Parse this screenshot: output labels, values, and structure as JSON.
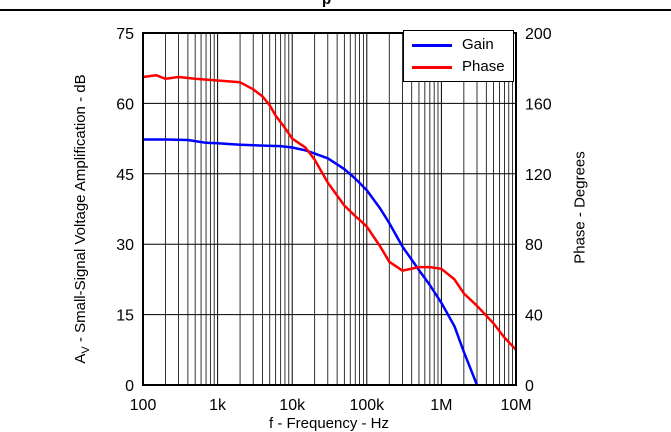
{
  "chart_data": {
    "type": "line",
    "title": "",
    "header_fragment": "p",
    "xlabel": "f - Frequency - Hz",
    "ylabel_left": "AV - Small-Signal Voltage Amplification - dB",
    "ylabel_left_parts": {
      "main": "A",
      "subscript": "V",
      "rest": " - Small-Signal Voltage Amplification - dB"
    },
    "ylabel_right": "Phase - Degrees",
    "x_scale": "log",
    "xlim": [
      100,
      10000000
    ],
    "x_ticks": [
      "100",
      "1k",
      "10k",
      "100k",
      "1M",
      "10M"
    ],
    "ylim_left": [
      0,
      75
    ],
    "y_ticks_left": [
      "0",
      "15",
      "30",
      "45",
      "60",
      "75"
    ],
    "ylim_right": [
      0,
      200
    ],
    "y_ticks_right": [
      "0",
      "40",
      "80",
      "120",
      "160",
      "200"
    ],
    "grid": true,
    "legend_position": "top-right",
    "series": [
      {
        "name": "Gain",
        "axis": "left",
        "color": "#0000ff",
        "points": [
          [
            100,
            52.3
          ],
          [
            200,
            52.3
          ],
          [
            400,
            52.2
          ],
          [
            700,
            51.6
          ],
          [
            1000,
            51.5
          ],
          [
            2000,
            51.2
          ],
          [
            4000,
            51.0
          ],
          [
            7000,
            50.9
          ],
          [
            10000,
            50.6
          ],
          [
            15000,
            50.0
          ],
          [
            20000,
            49.3
          ],
          [
            30000,
            48.3
          ],
          [
            50000,
            46.0
          ],
          [
            70000,
            44.0
          ],
          [
            100000,
            41.5
          ],
          [
            150000,
            37.7
          ],
          [
            200000,
            34.5
          ],
          [
            300000,
            29.5
          ],
          [
            500000,
            24.5
          ],
          [
            700000,
            21.3
          ],
          [
            1000000,
            17.5
          ],
          [
            1500000,
            12.5
          ],
          [
            2000000,
            7.0
          ],
          [
            3000000,
            0
          ]
        ]
      },
      {
        "name": "Phase",
        "axis": "right",
        "color": "#ff0000",
        "points": [
          [
            100,
            175
          ],
          [
            150,
            176
          ],
          [
            200,
            174
          ],
          [
            300,
            175
          ],
          [
            500,
            174
          ],
          [
            1000,
            173
          ],
          [
            2000,
            172
          ],
          [
            3000,
            168
          ],
          [
            4000,
            164
          ],
          [
            5000,
            159
          ],
          [
            6000,
            153
          ],
          [
            8000,
            146
          ],
          [
            10000,
            140
          ],
          [
            15000,
            135
          ],
          [
            20000,
            128
          ],
          [
            30000,
            115
          ],
          [
            50000,
            102
          ],
          [
            70000,
            96
          ],
          [
            100000,
            90
          ],
          [
            150000,
            79
          ],
          [
            200000,
            70
          ],
          [
            300000,
            65
          ],
          [
            500000,
            67
          ],
          [
            700000,
            67
          ],
          [
            1000000,
            66
          ],
          [
            1500000,
            60
          ],
          [
            2000000,
            52
          ],
          [
            3000000,
            45
          ],
          [
            5000000,
            35
          ],
          [
            7000000,
            27
          ],
          [
            10000000,
            20
          ]
        ]
      }
    ]
  }
}
